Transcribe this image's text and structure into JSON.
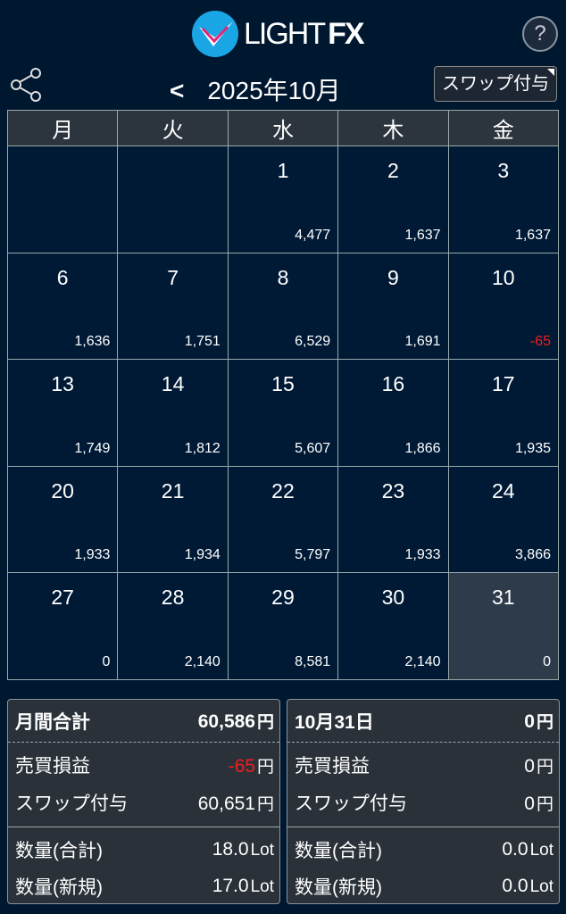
{
  "header": {
    "logo_text": "LIGHT",
    "logo_fx": "FX",
    "help": "?"
  },
  "nav": {
    "prev": "<",
    "month": "2025年10月",
    "swap_button": "スワップ付与"
  },
  "weekdays": [
    "月",
    "火",
    "水",
    "木",
    "金"
  ],
  "weeks": [
    [
      {
        "d": "",
        "v": ""
      },
      {
        "d": "",
        "v": ""
      },
      {
        "d": "1",
        "v": "4,477"
      },
      {
        "d": "2",
        "v": "1,637"
      },
      {
        "d": "3",
        "v": "1,637"
      }
    ],
    [
      {
        "d": "6",
        "v": "1,636"
      },
      {
        "d": "7",
        "v": "1,751"
      },
      {
        "d": "8",
        "v": "6,529"
      },
      {
        "d": "9",
        "v": "1,691"
      },
      {
        "d": "10",
        "v": "-65",
        "neg": true
      }
    ],
    [
      {
        "d": "13",
        "v": "1,749"
      },
      {
        "d": "14",
        "v": "1,812"
      },
      {
        "d": "15",
        "v": "5,607"
      },
      {
        "d": "16",
        "v": "1,866"
      },
      {
        "d": "17",
        "v": "1,935"
      }
    ],
    [
      {
        "d": "20",
        "v": "1,933"
      },
      {
        "d": "21",
        "v": "1,934"
      },
      {
        "d": "22",
        "v": "5,797"
      },
      {
        "d": "23",
        "v": "1,933"
      },
      {
        "d": "24",
        "v": "3,866"
      }
    ],
    [
      {
        "d": "27",
        "v": "0"
      },
      {
        "d": "28",
        "v": "2,140"
      },
      {
        "d": "29",
        "v": "8,581"
      },
      {
        "d": "30",
        "v": "2,140"
      },
      {
        "d": "31",
        "v": "0",
        "selected": true
      }
    ]
  ],
  "panels": [
    {
      "title": "月間合計",
      "total": "60,586",
      "pl_label": "売買損益",
      "pl": "-65",
      "pl_neg": true,
      "swap_label": "スワップ付与",
      "swap": "60,651",
      "qty_total_label": "数量(合計)",
      "qty_total": "18.0",
      "qty_new_label": "数量(新規)",
      "qty_new": "17.0"
    },
    {
      "title": "10月31日",
      "total": "0",
      "pl_label": "売買損益",
      "pl": "0",
      "pl_neg": false,
      "swap_label": "スワップ付与",
      "swap": "0",
      "qty_total_label": "数量(合計)",
      "qty_total": "0.0",
      "qty_new_label": "数量(新規)",
      "qty_new": "0.0"
    }
  ],
  "units": {
    "yen": "円",
    "lot": "Lot"
  },
  "colors": {
    "background": "#001730",
    "negative": "#f21d1d",
    "selected_cell": "#2e3b4a"
  }
}
